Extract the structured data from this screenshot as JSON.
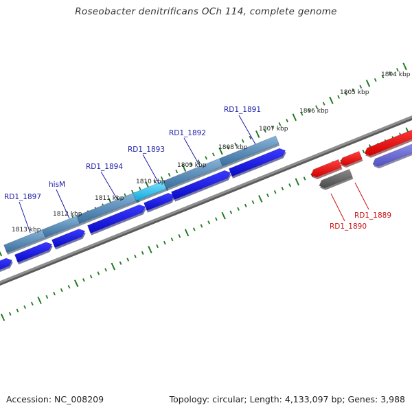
{
  "title": "Roseobacter denitrificans OCh 114, complete genome",
  "footer": {
    "accession": "Accession: NC_008209",
    "summary": "Topology: circular; Length: 4,133,097 bp; Genes: 3,988"
  },
  "colors": {
    "background": "#ffffff",
    "backbone": "#8f8f8f",
    "tick": "#1f7a1f",
    "forward_gene_label": "#1a1aa8",
    "reverse_gene_label": "#cc1111",
    "forward_cds": "#1414e6",
    "forward_feature": "#4f86b5",
    "highlight_feature": "#1ec0ee",
    "reverse_cds": "#ee1111",
    "reverse_feature_gray": "#606060",
    "reverse_feature_purple": "#6a6ad6"
  },
  "scale": {
    "labels": [
      "1804 kbp",
      "1805 kbp",
      "1806 kbp",
      "1807 kbp",
      "1808 kbp",
      "1809 kbp",
      "1810 kbp",
      "1811 kbp",
      "1812 kbp",
      "1813 kbp"
    ]
  },
  "genes": {
    "forward": [
      "RD1_1891",
      "RD1_1892",
      "RD1_1893",
      "RD1_1894",
      "hisM",
      "RD1_1897"
    ],
    "reverse": [
      "RD1_1889",
      "RD1_1890"
    ]
  }
}
